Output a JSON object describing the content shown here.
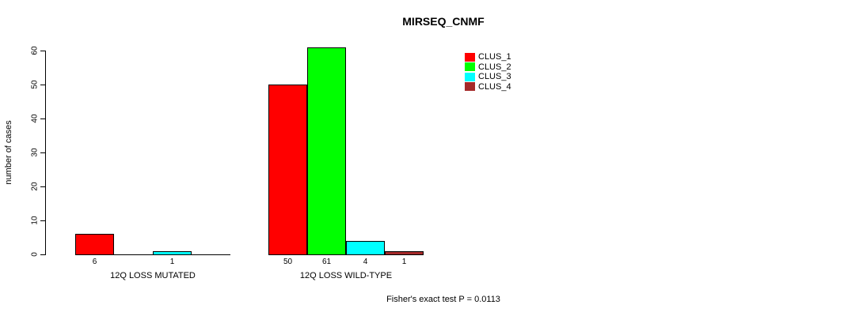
{
  "title": "MIRSEQ_CNMF",
  "y_axis": {
    "label": "number of cases"
  },
  "footer": "Fisher's exact test P = 0.0113",
  "chart_data": {
    "type": "bar",
    "title": "MIRSEQ_CNMF",
    "xlabel": "",
    "ylabel": "number of cases",
    "ylim": [
      0,
      60
    ],
    "yticks": [
      0,
      10,
      20,
      30,
      40,
      50,
      60
    ],
    "categories": [
      "12Q LOSS MUTATED",
      "12Q LOSS WILD-TYPE"
    ],
    "series": [
      {
        "name": "CLUS_1",
        "color": "#FF0000",
        "values": [
          6,
          50
        ]
      },
      {
        "name": "CLUS_2",
        "color": "#00FF00",
        "values": [
          0,
          61
        ]
      },
      {
        "name": "CLUS_3",
        "color": "#00FFFF",
        "values": [
          1,
          4
        ]
      },
      {
        "name": "CLUS_4",
        "color": "#A52A2A",
        "values": [
          0,
          1
        ]
      }
    ],
    "bar_value_labels_shown": [
      [
        "6",
        "1"
      ],
      [
        "50",
        "61",
        "4",
        "1"
      ]
    ],
    "annotation": "Fisher's exact test P = 0.0113",
    "legend_position": "top-right",
    "grid": false,
    "bar_border_color": "#000000"
  }
}
